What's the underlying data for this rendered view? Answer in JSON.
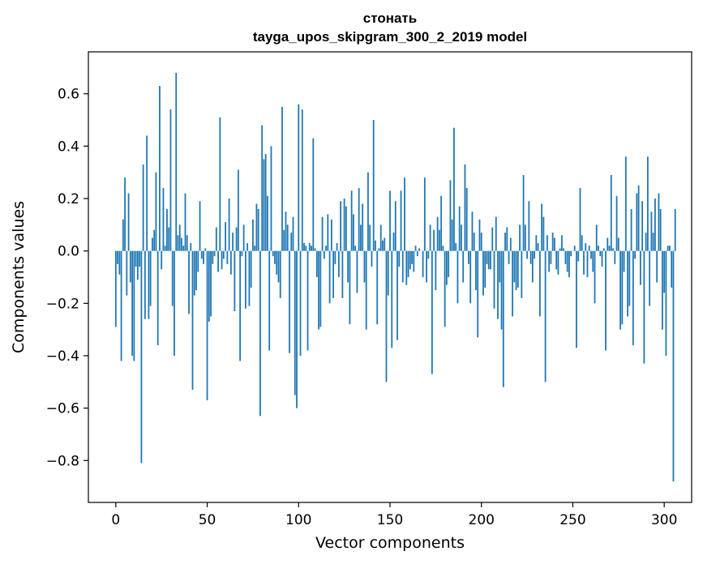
{
  "chart_data": {
    "type": "bar",
    "title_line1": "стонать",
    "title_line2": "tayga_upos_skipgram_300_2_2019 model",
    "xlabel": "Vector components",
    "ylabel": "Components values",
    "xlim": [
      -15,
      315
    ],
    "ylim": [
      -0.96,
      0.76
    ],
    "x_ticks": [
      0,
      50,
      100,
      150,
      200,
      250,
      300
    ],
    "x_tick_labels": [
      "0",
      "50",
      "100",
      "150",
      "200",
      "250",
      "300"
    ],
    "y_ticks": [
      0.6,
      0.4,
      0.2,
      0.0,
      -0.2,
      -0.4,
      -0.6,
      -0.8
    ],
    "y_tick_labels": [
      "0.6",
      "0.4",
      "0.2",
      "0.0",
      "−0.2",
      "−0.4",
      "−0.6",
      "−0.8"
    ],
    "bar_color": "#1f77b4",
    "values": [
      -0.29,
      -0.05,
      -0.09,
      -0.42,
      0.12,
      0.28,
      -0.17,
      0.22,
      -0.12,
      -0.4,
      -0.42,
      -0.06,
      -0.11,
      -0.06,
      -0.81,
      0.33,
      -0.26,
      0.44,
      -0.26,
      -0.21,
      0.05,
      0.08,
      0.3,
      -0.36,
      0.63,
      -0.07,
      0.24,
      0.02,
      0.16,
      0.09,
      0.54,
      -0.21,
      -0.4,
      0.68,
      0.06,
      0.1,
      0.05,
      0.02,
      0.22,
      0.06,
      -0.24,
      0.03,
      -0.53,
      -0.17,
      -0.15,
      -0.08,
      0.19,
      -0.03,
      -0.05,
      0.01,
      -0.57,
      -0.27,
      -0.25,
      -0.05,
      -0.02,
      0.09,
      -0.08,
      0.51,
      -0.07,
      -0.03,
      0.11,
      -0.05,
      0.2,
      -0.09,
      0.07,
      -0.23,
      0.09,
      0.31,
      -0.42,
      -0.02,
      0.1,
      -0.22,
      0.03,
      -0.21,
      -0.14,
      0.12,
      0.02,
      0.18,
      0.16,
      -0.63,
      0.48,
      0.35,
      0.37,
      0.21,
      -0.38,
      0.4,
      -0.02,
      -0.05,
      -0.09,
      -0.12,
      -0.18,
      0.55,
      0.08,
      0.15,
      0.1,
      -0.39,
      0.07,
      0.13,
      -0.55,
      -0.6,
      0.56,
      -0.4,
      0.54,
      0.03,
      0.02,
      -0.38,
      0.03,
      0.02,
      0.43,
      0.01,
      -0.1,
      -0.3,
      -0.29,
      0.13,
      -0.03,
      0.02,
      0.14,
      -0.2,
      0.12,
      -0.18,
      -0.05,
      0.03,
      -0.1,
      0.19,
      -0.18,
      0.2,
      0.17,
      -0.12,
      -0.28,
      0.23,
      0.14,
      0.02,
      -0.16,
      0.24,
      0.1,
      0.18,
      -0.12,
      -0.3,
      0.3,
      0.1,
      -0.06,
      0.5,
      0.04,
      -0.28,
      0.01,
      0.1,
      0.04,
      0.05,
      -0.5,
      -0.17,
      0.23,
      -0.37,
      0.07,
      0.19,
      -0.34,
      -0.06,
      0.23,
      -0.12,
      0.28,
      -0.13,
      -0.1,
      -0.07,
      -0.05,
      -0.08,
      0.02,
      -0.02,
      0.01,
      0.0,
      -0.1,
      0.28,
      -0.12,
      -0.03,
      0.1,
      -0.47,
      0.08,
      -0.15,
      0.13,
      0.08,
      0.21,
      0.02,
      -0.29,
      -0.13,
      -0.1,
      0.27,
      0.12,
      0.47,
      0.03,
      -0.2,
      0.17,
      0.1,
      -0.12,
      0.33,
      0.24,
      -0.05,
      -0.2,
      0.15,
      0.07,
      -0.15,
      -0.33,
      0.12,
      0.07,
      -0.17,
      -0.14,
      -0.05,
      -0.07,
      -0.07,
      0.09,
      -0.22,
      0.13,
      -0.26,
      -0.12,
      -0.3,
      -0.52,
      0.07,
      0.09,
      -0.05,
      0.05,
      -0.25,
      -0.12,
      -0.15,
      -0.14,
      0.1,
      -0.18,
      0.29,
      0.1,
      -0.03,
      0.19,
      -0.05,
      -0.12,
      -0.03,
      0.06,
      0.03,
      -0.25,
      0.18,
      0.13,
      -0.5,
      0.06,
      -0.08,
      -0.05,
      0.07,
      0.05,
      -0.07,
      -0.09,
      0.01,
      0.06,
      0.01,
      -0.05,
      -0.08,
      -0.1,
      -0.02,
      0.0,
      0.02,
      -0.37,
      -0.04,
      0.24,
      0.06,
      -0.09,
      0.03,
      -0.1,
      0.02,
      -0.03,
      -0.08,
      -0.2,
      0.1,
      0.02,
      -0.02,
      -0.06,
      0.01,
      -0.38,
      0.05,
      0.02,
      0.29,
      0.01,
      -0.05,
      0.21,
      0.05,
      -0.3,
      -0.28,
      -0.08,
      0.36,
      -0.25,
      -0.21,
      0.16,
      -0.36,
      -0.03,
      0.22,
      0.25,
      -0.13,
      0.19,
      -0.43,
      0.07,
      0.36,
      -0.21,
      0.15,
      0.07,
      0.2,
      -0.12,
      0.22,
      0.16,
      -0.3,
      -0.16,
      -0.4,
      0.02,
      0.02,
      -0.14,
      -0.88,
      0.16
    ]
  }
}
